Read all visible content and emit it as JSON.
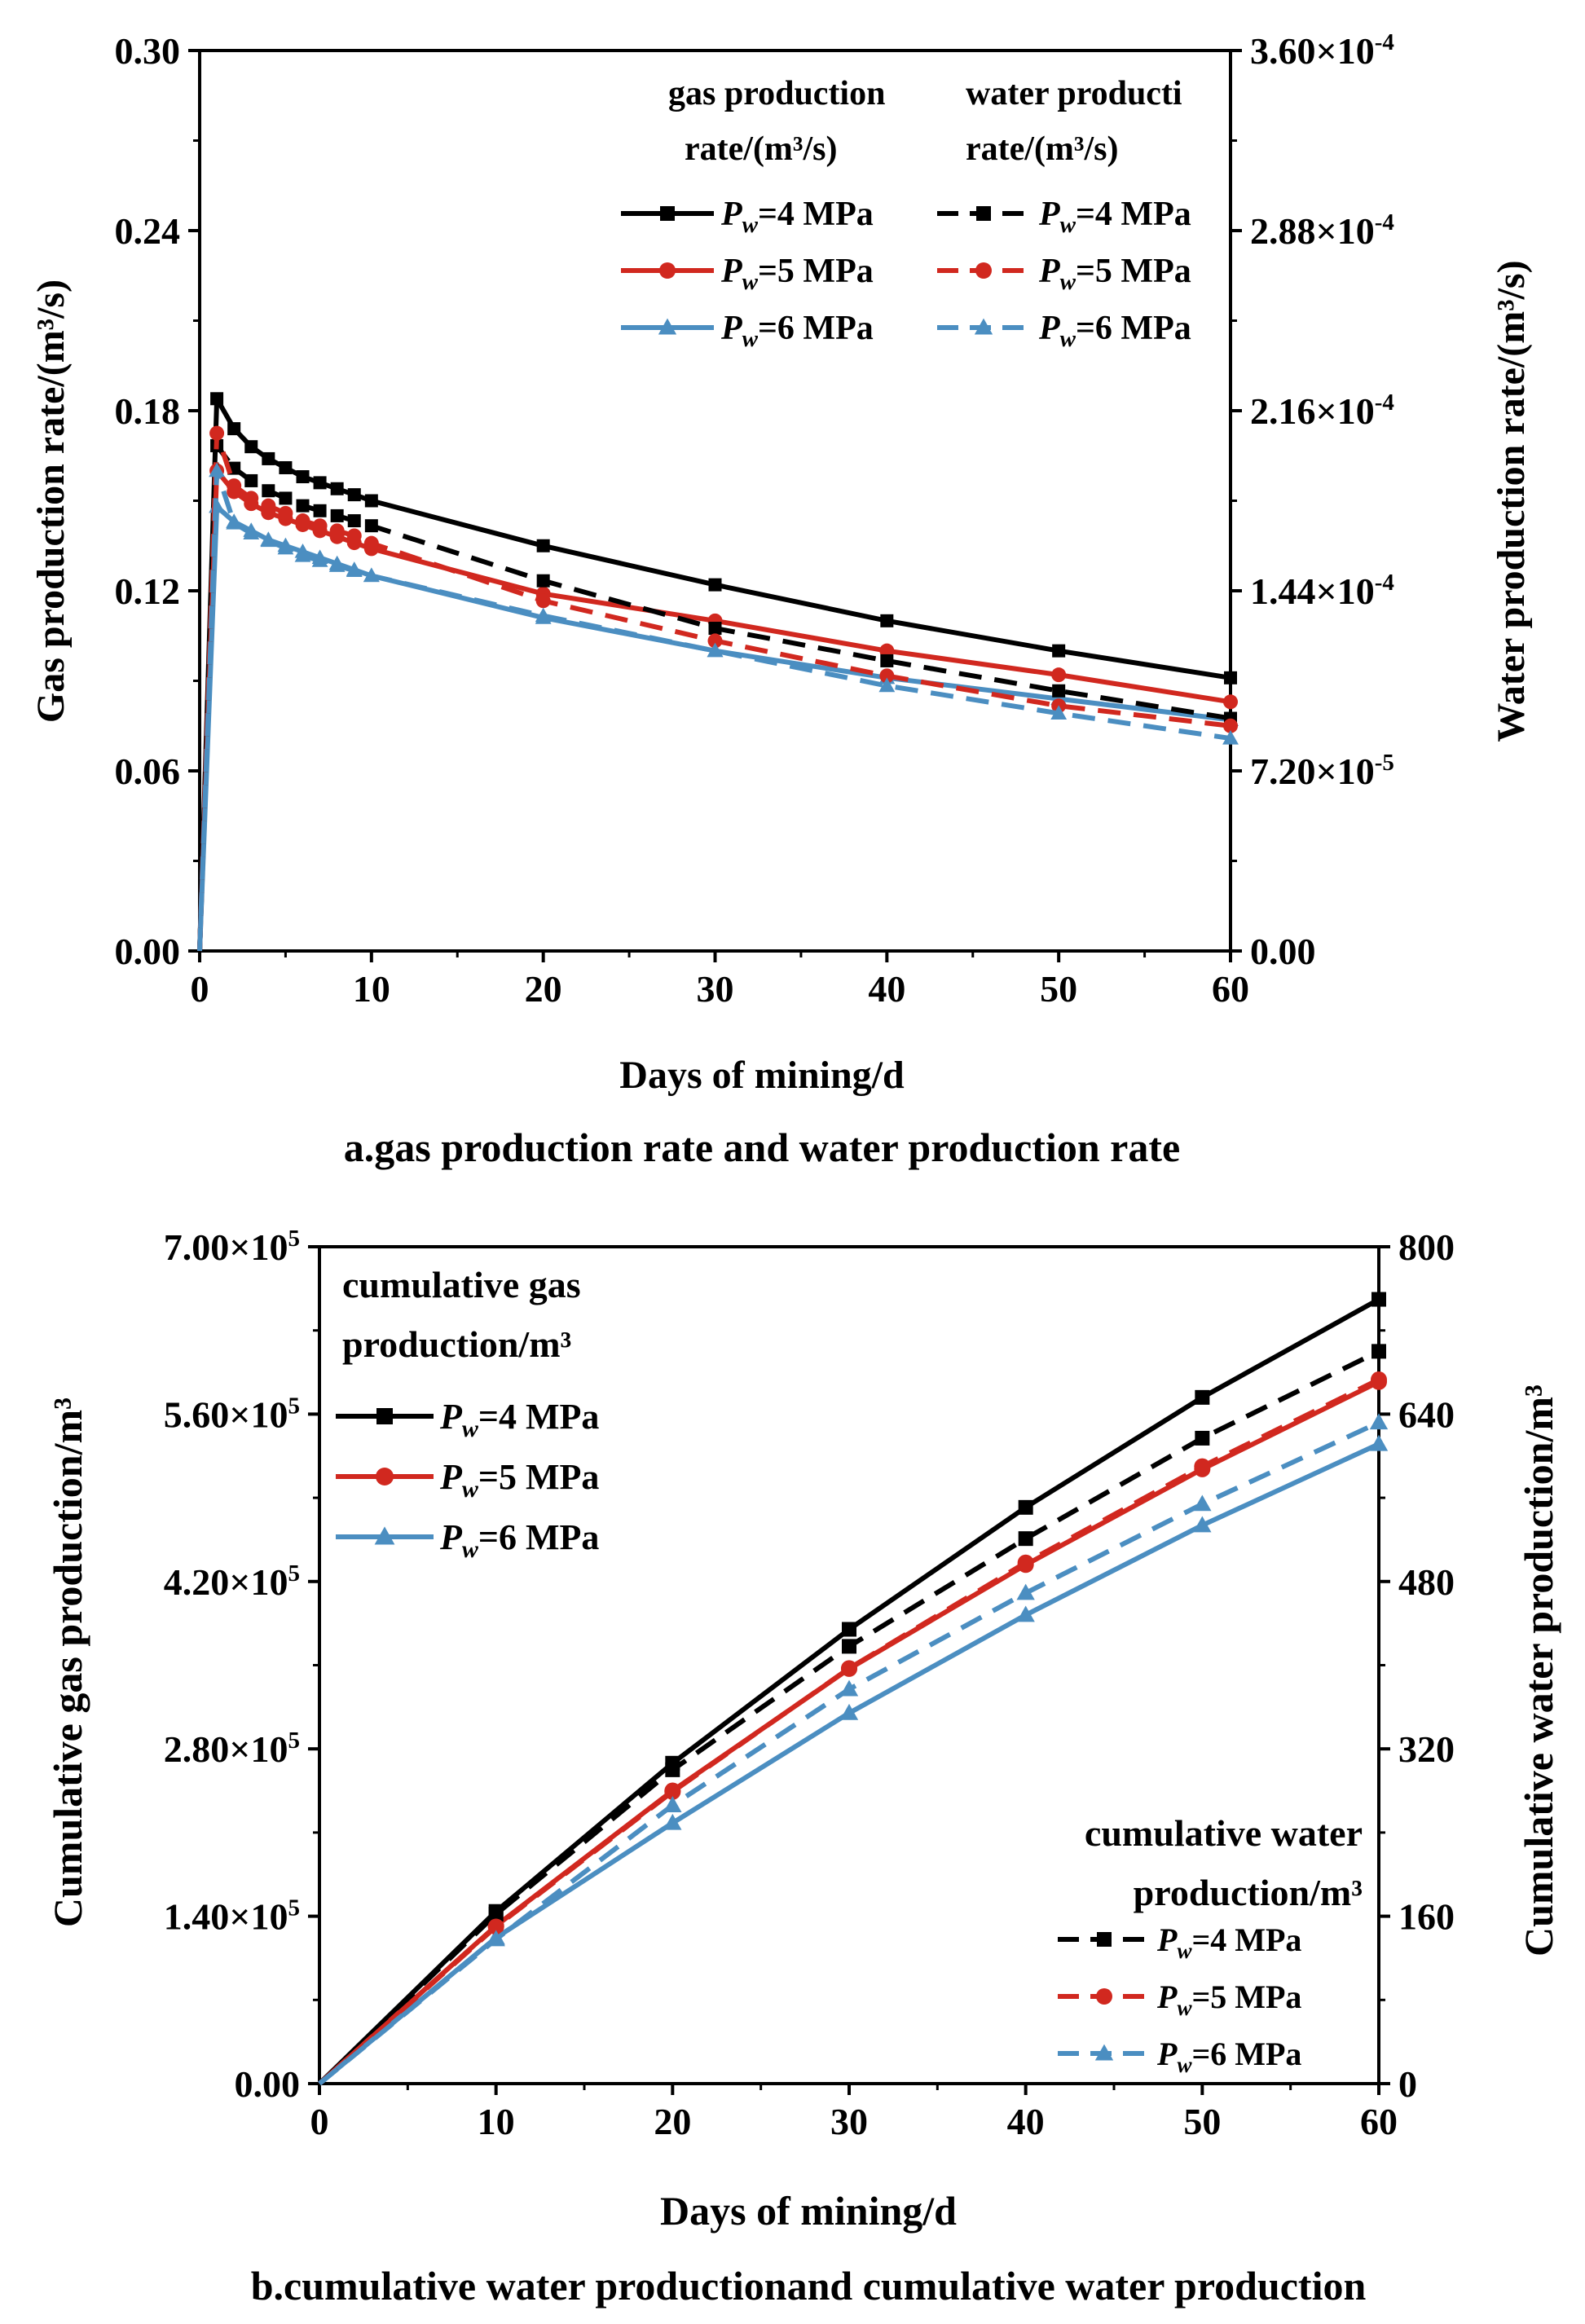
{
  "colors": {
    "black": "#000000",
    "red": "#d1281f",
    "blue": "#4b8ec1"
  },
  "chart_data": [
    {
      "type": "line",
      "caption": "a.gas production rate and water production rate",
      "xlabel": "Days of mining/d",
      "ylabel_left": "Gas production rate/(m³/s)",
      "ylabel_right": "Water production rate/(m³/s)",
      "xlim": [
        0,
        60
      ],
      "ylim_left": [
        0,
        0.3
      ],
      "ylim_right": [
        0,
        0.00036
      ],
      "xticks": [
        "0",
        "10",
        "20",
        "30",
        "40",
        "50",
        "60"
      ],
      "yticks_left": [
        "0.00",
        "0.06",
        "0.12",
        "0.18",
        "0.24",
        "0.30"
      ],
      "yticks_right": [
        {
          "mant": "0.00",
          "exp": ""
        },
        {
          "mant": "7.20×10",
          "exp": "-5"
        },
        {
          "mant": "1.44×10",
          "exp": "-4"
        },
        {
          "mant": "2.16×10",
          "exp": "-4"
        },
        {
          "mant": "2.88×10",
          "exp": "-4"
        },
        {
          "mant": "3.60×10",
          "exp": "-4"
        }
      ],
      "legend": {
        "gas_title_line1": "gas production",
        "gas_title_line2": "rate/(m³/s)",
        "water_title_line1": "water producti",
        "water_title_line2": "rate/(m³/s)",
        "entries": [
          {
            "prefix": "P",
            "sub": "w",
            "suffix": "=4 MPa"
          },
          {
            "prefix": "P",
            "sub": "w",
            "suffix": "=5 MPa"
          },
          {
            "prefix": "P",
            "sub": "w",
            "suffix": "=6 MPa"
          }
        ]
      },
      "x": [
        0,
        1,
        2,
        3,
        4,
        5,
        6,
        7,
        8,
        9,
        10,
        20,
        30,
        40,
        50,
        60
      ],
      "series": [
        {
          "name": "Gas Pw=4 MPa",
          "axis": "left",
          "style": "solid",
          "marker": "square",
          "color": "black",
          "values": [
            0,
            0.184,
            0.174,
            0.168,
            0.164,
            0.161,
            0.158,
            0.156,
            0.154,
            0.152,
            0.15,
            0.135,
            0.122,
            0.11,
            0.1,
            0.091
          ]
        },
        {
          "name": "Gas Pw=5 MPa",
          "axis": "left",
          "style": "solid",
          "marker": "circle",
          "color": "red",
          "values": [
            0,
            0.16,
            0.153,
            0.149,
            0.146,
            0.144,
            0.142,
            0.14,
            0.138,
            0.136,
            0.134,
            0.119,
            0.11,
            0.1,
            0.092,
            0.083
          ]
        },
        {
          "name": "Gas Pw=6 MPa",
          "axis": "left",
          "style": "solid",
          "marker": "triangle",
          "color": "blue",
          "values": [
            0,
            0.148,
            0.143,
            0.14,
            0.137,
            0.135,
            0.133,
            0.131,
            0.129,
            0.127,
            0.125,
            0.111,
            0.1,
            0.091,
            0.084,
            0.077
          ]
        },
        {
          "name": "Water Pw=4 MPa",
          "axis": "right",
          "style": "dashed",
          "marker": "square",
          "color": "black",
          "values": [
            0,
            0.000202,
            0.000193,
            0.000188,
            0.000184,
            0.000181,
            0.000178,
            0.000176,
            0.000174,
            0.000172,
            0.00017,
            0.000148,
            0.000129,
            0.000116,
            0.000104,
            9.3e-05
          ]
        },
        {
          "name": "Water Pw=5 MPa",
          "axis": "right",
          "style": "dashed",
          "marker": "circle",
          "color": "red",
          "values": [
            0,
            0.000207,
            0.000186,
            0.000181,
            0.000178,
            0.000175,
            0.000172,
            0.00017,
            0.000168,
            0.000166,
            0.000163,
            0.00014,
            0.000124,
            0.00011,
            9.8e-05,
            9e-05
          ]
        },
        {
          "name": "Water Pw=6 MPa",
          "axis": "right",
          "style": "dashed",
          "marker": "triangle",
          "color": "blue",
          "values": [
            0,
            0.000192,
            0.000171,
            0.000167,
            0.000164,
            0.000161,
            0.000158,
            0.000156,
            0.000154,
            0.000152,
            0.00015,
            0.000134,
            0.00012,
            0.000106,
            9.5e-05,
            8.5e-05
          ]
        }
      ]
    },
    {
      "type": "line",
      "caption": "b.cumulative water productionand cumulative water production",
      "xlabel": "Days of mining/d",
      "ylabel_left": "Cumulative gas production/m³",
      "ylabel_right": "Cumulative water production/m³",
      "xlim": [
        0,
        60
      ],
      "ylim_left": [
        0,
        700000
      ],
      "ylim_right": [
        0,
        800
      ],
      "xticks": [
        "0",
        "10",
        "20",
        "30",
        "40",
        "50",
        "60"
      ],
      "yticks_left": [
        {
          "mant": "0.00",
          "exp": ""
        },
        {
          "mant": "1.40×10",
          "exp": "5"
        },
        {
          "mant": "2.80×10",
          "exp": "5"
        },
        {
          "mant": "4.20×10",
          "exp": "5"
        },
        {
          "mant": "5.60×10",
          "exp": "5"
        },
        {
          "mant": "7.00×10",
          "exp": "5"
        }
      ],
      "yticks_right": [
        "0",
        "160",
        "320",
        "480",
        "640",
        "800"
      ],
      "legend_gas": {
        "title_line1": "cumulative gas",
        "title_line2": "production/m³",
        "entries": [
          {
            "prefix": "P",
            "sub": "w",
            "suffix": "=4 MPa"
          },
          {
            "prefix": "P",
            "sub": "w",
            "suffix": "=5 MPa"
          },
          {
            "prefix": "P",
            "sub": "w",
            "suffix": "=6 MPa"
          }
        ]
      },
      "legend_water": {
        "title_line1": "cumulative water",
        "title_line2": "production/m³",
        "entries": [
          {
            "prefix": "P",
            "sub": "w",
            "suffix": "=4 MPa"
          },
          {
            "prefix": "P",
            "sub": "w",
            "suffix": "=5 MPa"
          },
          {
            "prefix": "P",
            "sub": "w",
            "suffix": "=6 MPa"
          }
        ]
      },
      "x": [
        0,
        10,
        20,
        30,
        40,
        50,
        60
      ],
      "series": [
        {
          "name": "Cum gas Pw=4 MPa",
          "axis": "left",
          "style": "solid",
          "marker": "square",
          "color": "black",
          "values": [
            0,
            144000,
            268000,
            380000,
            482000,
            574000,
            656000
          ]
        },
        {
          "name": "Cum gas Pw=5 MPa",
          "axis": "left",
          "style": "solid",
          "marker": "circle",
          "color": "red",
          "values": [
            0,
            132000,
            245000,
            347000,
            434000,
            514000,
            587000
          ]
        },
        {
          "name": "Cum gas Pw=6 MPa",
          "axis": "left",
          "style": "solid",
          "marker": "triangle",
          "color": "blue",
          "values": [
            0,
            122000,
            218000,
            310000,
            392000,
            467000,
            535000
          ]
        },
        {
          "name": "Cum water Pw=4 MPa",
          "axis": "right",
          "style": "dashed",
          "marker": "square",
          "color": "black",
          "values": [
            0,
            162,
            300,
            418,
            521,
            617,
            700
          ]
        },
        {
          "name": "Cum water Pw=5 MPa",
          "axis": "right",
          "style": "dashed",
          "marker": "circle",
          "color": "red",
          "values": [
            0,
            150,
            279,
            397,
            498,
            590,
            673
          ]
        },
        {
          "name": "Cum water Pw=6 MPa",
          "axis": "right",
          "style": "dashed",
          "marker": "triangle",
          "color": "blue",
          "values": [
            0,
            138,
            266,
            377,
            469,
            554,
            632
          ]
        }
      ]
    }
  ]
}
